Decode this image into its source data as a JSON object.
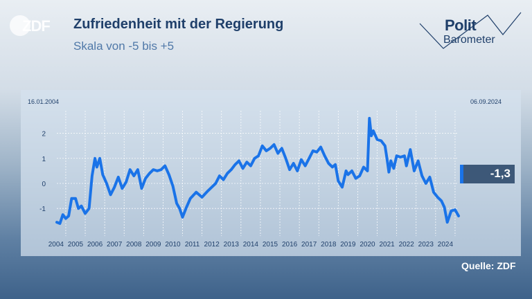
{
  "header": {
    "logo_text": "ZDF",
    "title": "Zufriedenheit mit der Regierung",
    "subtitle": "Skala von -5 bis +5",
    "brand_line1": "Polit",
    "brand_line2": "Barometer"
  },
  "footer": {
    "source": "Quelle: ZDF"
  },
  "colors": {
    "line": "#1a73e8",
    "title": "#1f3f6a",
    "subtitle": "#4f78a8",
    "panel": "#d6e2ee"
  },
  "chart_data": {
    "type": "line",
    "date_start": "16.01.2004",
    "date_end": "06.09.2024",
    "current_value_label": "-1,3",
    "xlim": [
      2004.04,
      2024.68
    ],
    "ylim": [
      -2.1,
      2.9
    ],
    "grid": true,
    "x_ticks": [
      2004,
      2005,
      2006,
      2007,
      2008,
      2009,
      2010,
      2011,
      2012,
      2013,
      2014,
      2015,
      2016,
      2017,
      2018,
      2019,
      2020,
      2021,
      2022,
      2023,
      2024
    ],
    "y_ticks": [
      2,
      1,
      0,
      -1
    ],
    "y_tick_labels": [
      "2",
      "1",
      "0",
      "-1"
    ],
    "series": [
      {
        "x": [
          2004.04,
          2004.2,
          2004.35,
          2004.5,
          2004.65,
          2004.8,
          2005.0,
          2005.15,
          2005.3,
          2005.5,
          2005.7,
          2005.85,
          2006.0,
          2006.1,
          2006.25,
          2006.4,
          2006.6,
          2006.8,
          2007.0,
          2007.2,
          2007.4,
          2007.6,
          2007.8,
          2008.0,
          2008.2,
          2008.4,
          2008.6,
          2008.8,
          2009.0,
          2009.2,
          2009.4,
          2009.6,
          2009.8,
          2010.0,
          2010.2,
          2010.35,
          2010.5,
          2010.7,
          2010.9,
          2011.2,
          2011.5,
          2011.8,
          2012.0,
          2012.2,
          2012.4,
          2012.6,
          2012.8,
          2013.0,
          2013.2,
          2013.4,
          2013.6,
          2013.8,
          2014.0,
          2014.2,
          2014.4,
          2014.6,
          2014.8,
          2015.0,
          2015.2,
          2015.4,
          2015.6,
          2015.8,
          2016.0,
          2016.2,
          2016.4,
          2016.6,
          2016.8,
          2017.0,
          2017.2,
          2017.4,
          2017.6,
          2017.8,
          2018.0,
          2018.2,
          2018.35,
          2018.5,
          2018.7,
          2018.9,
          2019.0,
          2019.2,
          2019.4,
          2019.6,
          2019.8,
          2020.0,
          2020.1,
          2020.2,
          2020.3,
          2020.5,
          2020.7,
          2020.9,
          2021.0,
          2021.1,
          2021.2,
          2021.35,
          2021.5,
          2021.7,
          2021.9,
          2022.0,
          2022.2,
          2022.4,
          2022.6,
          2022.8,
          2023.0,
          2023.2,
          2023.4,
          2023.6,
          2023.8,
          2023.95,
          2024.1,
          2024.3,
          2024.5,
          2024.68
        ],
        "y": [
          -1.55,
          -1.6,
          -1.25,
          -1.4,
          -1.3,
          -0.6,
          -0.6,
          -1.0,
          -0.9,
          -1.2,
          -1.0,
          0.3,
          1.0,
          0.65,
          1.0,
          0.35,
          0.0,
          -0.45,
          -0.15,
          0.25,
          -0.2,
          0.05,
          0.55,
          0.3,
          0.55,
          -0.2,
          0.2,
          0.4,
          0.55,
          0.5,
          0.55,
          0.7,
          0.35,
          -0.1,
          -0.8,
          -1.0,
          -1.35,
          -0.95,
          -0.6,
          -0.35,
          -0.55,
          -0.3,
          -0.15,
          0.0,
          0.3,
          0.15,
          0.4,
          0.55,
          0.75,
          0.9,
          0.6,
          0.85,
          0.7,
          1.0,
          1.1,
          1.5,
          1.3,
          1.4,
          1.55,
          1.2,
          1.4,
          1.0,
          0.55,
          0.8,
          0.5,
          0.95,
          0.7,
          1.0,
          1.3,
          1.25,
          1.45,
          1.1,
          0.8,
          0.65,
          0.75,
          0.1,
          -0.15,
          0.5,
          0.35,
          0.5,
          0.2,
          0.3,
          0.65,
          0.5,
          2.6,
          1.9,
          2.1,
          1.75,
          1.7,
          1.5,
          1.0,
          0.45,
          0.9,
          0.6,
          1.1,
          1.05,
          1.1,
          0.7,
          1.35,
          0.5,
          0.9,
          0.3,
          0.0,
          0.25,
          -0.35,
          -0.55,
          -0.7,
          -0.95,
          -1.55,
          -1.1,
          -1.05,
          -1.3
        ]
      }
    ]
  }
}
